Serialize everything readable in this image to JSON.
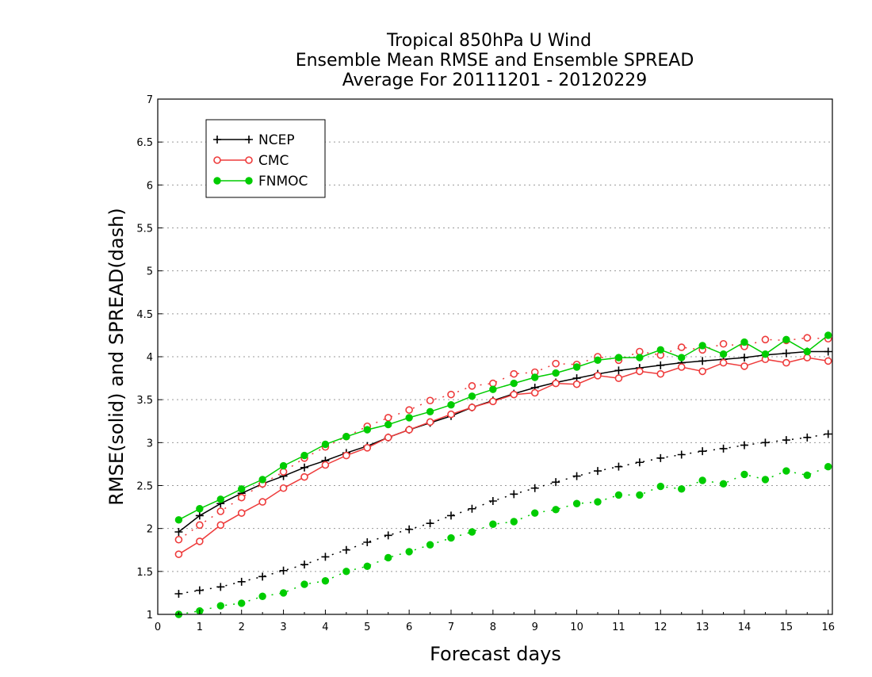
{
  "chart_data": {
    "type": "line",
    "title": [
      "Tropical 850hPa U Wind",
      "Ensemble Mean RMSE and Ensemble SPREAD",
      "Average For 20111201 - 20120229"
    ],
    "xlabel": "Forecast days",
    "ylabel": "RMSE(solid) and SPREAD(dash)",
    "xlim": [
      0,
      16.1
    ],
    "ylim": [
      1,
      7
    ],
    "xticks": [
      "0",
      "1",
      "2",
      "3",
      "4",
      "5",
      "6",
      "7",
      "8",
      "9",
      "10",
      "11",
      "12",
      "13",
      "14",
      "15",
      "16"
    ],
    "yticks": [
      "1",
      "1.5",
      "2",
      "2.5",
      "3",
      "3.5",
      "4",
      "4.5",
      "5",
      "5.5",
      "6",
      "6.5",
      "7"
    ],
    "grid": "horizontal-dotted",
    "legend_position": "top-left",
    "x": [
      0.5,
      1,
      1.5,
      2,
      2.5,
      3,
      3.5,
      4,
      4.5,
      5,
      5.5,
      6,
      6.5,
      7,
      7.5,
      8,
      8.5,
      9,
      9.5,
      10,
      10.5,
      11,
      11.5,
      12,
      12.5,
      13,
      13.5,
      14,
      14.5,
      15,
      15.5,
      16
    ],
    "series": [
      {
        "name": "NCEP",
        "color": "#000000",
        "marker": "plus",
        "rmse": [
          1.96,
          2.15,
          2.29,
          2.41,
          2.52,
          2.61,
          2.71,
          2.79,
          2.88,
          2.96,
          3.06,
          3.15,
          3.23,
          3.31,
          3.41,
          3.49,
          3.57,
          3.64,
          3.7,
          3.75,
          3.8,
          3.84,
          3.87,
          3.9,
          3.93,
          3.95,
          3.97,
          3.99,
          4.02,
          4.04,
          4.06,
          4.06
        ],
        "spread": [
          1.24,
          1.28,
          1.32,
          1.38,
          1.44,
          1.51,
          1.58,
          1.67,
          1.75,
          1.84,
          1.92,
          1.99,
          2.06,
          2.15,
          2.23,
          2.32,
          2.4,
          2.47,
          2.54,
          2.61,
          2.67,
          2.72,
          2.77,
          2.82,
          2.86,
          2.9,
          2.93,
          2.97,
          3.0,
          3.03,
          3.06,
          3.1
        ]
      },
      {
        "name": "CMC",
        "color": "#ee3b3b",
        "marker": "open-circle",
        "rmse": [
          1.7,
          1.85,
          2.04,
          2.18,
          2.31,
          2.47,
          2.6,
          2.74,
          2.85,
          2.94,
          3.06,
          3.15,
          3.24,
          3.33,
          3.41,
          3.48,
          3.56,
          3.58,
          3.69,
          3.68,
          3.78,
          3.75,
          3.83,
          3.8,
          3.88,
          3.83,
          3.93,
          3.89,
          3.97,
          3.93,
          3.99,
          3.95
        ],
        "spread": [
          1.87,
          2.04,
          2.2,
          2.36,
          2.52,
          2.66,
          2.82,
          2.95,
          3.07,
          3.19,
          3.29,
          3.38,
          3.49,
          3.56,
          3.66,
          3.69,
          3.8,
          3.82,
          3.92,
          3.91,
          4.0,
          3.96,
          4.06,
          4.02,
          4.11,
          4.08,
          4.15,
          4.12,
          4.2,
          4.19,
          4.22,
          4.21
        ]
      },
      {
        "name": "FNMOC",
        "color": "#00cc00",
        "marker": "filled-circle",
        "rmse": [
          2.1,
          2.23,
          2.34,
          2.46,
          2.57,
          2.73,
          2.85,
          2.98,
          3.07,
          3.15,
          3.21,
          3.29,
          3.36,
          3.44,
          3.54,
          3.62,
          3.69,
          3.76,
          3.81,
          3.88,
          3.96,
          3.99,
          3.99,
          4.08,
          3.99,
          4.13,
          4.03,
          4.17,
          4.03,
          4.2,
          4.06,
          4.25
        ],
        "spread": [
          1.0,
          1.04,
          1.1,
          1.13,
          1.21,
          1.25,
          1.35,
          1.39,
          1.5,
          1.56,
          1.66,
          1.73,
          1.81,
          1.89,
          1.96,
          2.05,
          2.08,
          2.18,
          2.22,
          2.29,
          2.31,
          2.39,
          2.39,
          2.49,
          2.46,
          2.56,
          2.52,
          2.63,
          2.57,
          2.67,
          2.62,
          2.72
        ]
      }
    ]
  }
}
